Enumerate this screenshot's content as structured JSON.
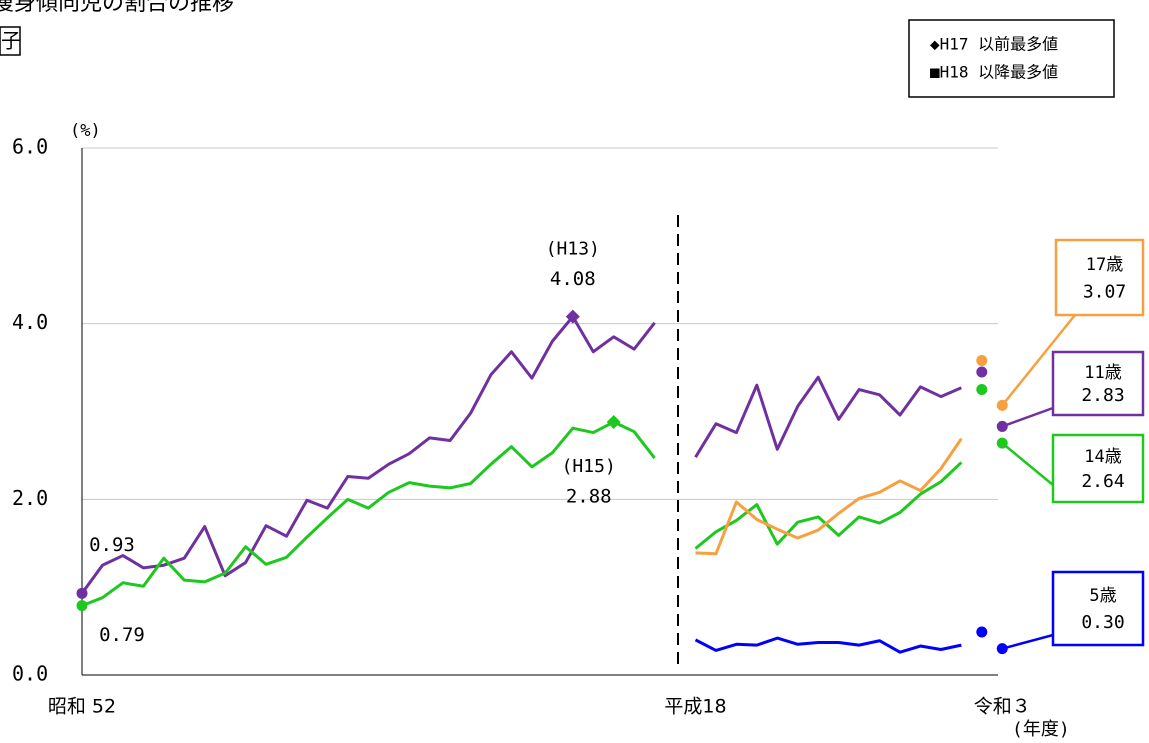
{
  "chart_data": {
    "type": "line",
    "title": "痩身傾向児の割合の推移",
    "subtitle": "子",
    "y_label": "(%)",
    "x_label": "(年度)",
    "legend_notes": [
      "◆H17 以前最多値",
      "■H18 以降最多値"
    ],
    "categories": [
      "昭和 52",
      null,
      null,
      null,
      null,
      null,
      null,
      null,
      null,
      null,
      null,
      null,
      null,
      null,
      null,
      null,
      null,
      null,
      null,
      null,
      null,
      null,
      null,
      null,
      null,
      null,
      null,
      null,
      null,
      "平成18",
      null,
      null,
      null,
      null,
      null,
      null,
      null,
      null,
      null,
      null,
      null,
      null,
      null,
      null,
      "令和３"
    ],
    "segments": [
      [
        0,
        28
      ],
      [
        29,
        42
      ]
    ],
    "ylim": [
      0,
      6
    ],
    "yticks": [
      {
        "value": 0,
        "label": "0.0"
      },
      {
        "value": 2,
        "label": "2.0"
      },
      {
        "value": 4,
        "label": "4.0"
      },
      {
        "value": 6,
        "label": "6.0"
      }
    ],
    "grid": true,
    "series": [
      {
        "name": "11歳",
        "color": "#7030a0",
        "values": [
          0.93,
          1.25,
          1.36,
          1.22,
          1.25,
          1.33,
          1.69,
          1.13,
          1.28,
          1.7,
          1.58,
          1.99,
          1.9,
          2.26,
          2.24,
          2.4,
          2.52,
          2.7,
          2.67,
          2.98,
          3.42,
          3.68,
          3.38,
          3.8,
          4.08,
          3.68,
          3.85,
          3.71,
          4.01,
          2.48,
          2.86,
          2.76,
          3.3,
          2.57,
          3.06,
          3.39,
          2.91,
          3.25,
          3.19,
          2.96,
          3.28,
          3.17,
          3.27,
          3.45,
          2.83
        ],
        "labeled": [
          0,
          24,
          44
        ],
        "record": {
          "index": 24,
          "label": "(H13)"
        }
      },
      {
        "name": "14歳",
        "color": "#1ec81e",
        "values": [
          0.79,
          0.88,
          1.05,
          1.01,
          1.33,
          1.08,
          1.06,
          1.16,
          1.46,
          1.26,
          1.34,
          1.57,
          1.79,
          2.0,
          1.9,
          2.08,
          2.19,
          2.15,
          2.13,
          2.18,
          2.4,
          2.6,
          2.37,
          2.53,
          2.81,
          2.76,
          2.88,
          2.77,
          2.47,
          1.44,
          1.63,
          1.76,
          1.94,
          1.49,
          1.74,
          1.8,
          1.59,
          1.8,
          1.73,
          1.85,
          2.06,
          2.2,
          2.42,
          3.25,
          2.64
        ],
        "labeled": [
          0,
          26,
          44
        ],
        "record": {
          "index": 26,
          "label": "(H15)"
        }
      },
      {
        "name": "17歳",
        "color": "#f7a040",
        "values": [
          null,
          null,
          null,
          null,
          null,
          null,
          null,
          null,
          null,
          null,
          null,
          null,
          null,
          null,
          null,
          null,
          null,
          null,
          null,
          null,
          null,
          null,
          null,
          null,
          null,
          null,
          null,
          null,
          null,
          1.39,
          1.38,
          1.97,
          1.77,
          1.66,
          1.56,
          1.65,
          1.84,
          2.01,
          2.08,
          2.21,
          2.1,
          2.35,
          2.69,
          3.58,
          3.07
        ],
        "labeled": [
          44
        ]
      },
      {
        "name": "5歳",
        "color": "#0000ff",
        "values": [
          null,
          null,
          null,
          null,
          null,
          null,
          null,
          null,
          null,
          null,
          null,
          null,
          null,
          null,
          null,
          null,
          null,
          null,
          null,
          null,
          null,
          null,
          null,
          null,
          null,
          null,
          null,
          null,
          null,
          0.4,
          0.28,
          0.35,
          0.34,
          0.42,
          0.35,
          0.37,
          0.37,
          0.34,
          0.39,
          0.26,
          0.33,
          0.29,
          0.34,
          0.49,
          0.3
        ],
        "value_labels": [
          null,
          null,
          null,
          null,
          null,
          null,
          null,
          null,
          null,
          null,
          null,
          null,
          null,
          null,
          null,
          null,
          null,
          null,
          null,
          null,
          null,
          null,
          null,
          null,
          null,
          null,
          null,
          null,
          null,
          null,
          null,
          null,
          null,
          null,
          null,
          null,
          null,
          null,
          null,
          null,
          null,
          null,
          null,
          null,
          "0.30"
        ],
        "labeled": [
          44
        ]
      }
    ]
  }
}
